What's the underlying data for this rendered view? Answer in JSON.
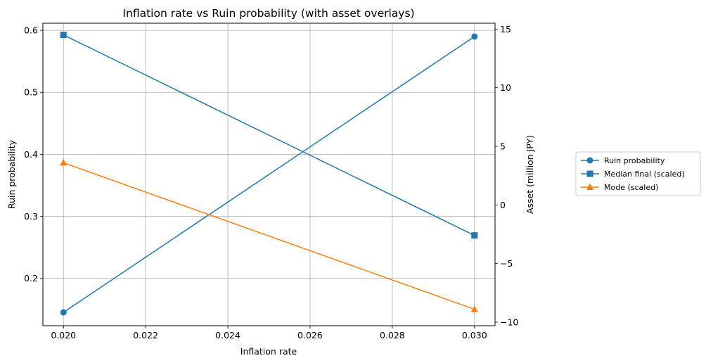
{
  "chart_data": {
    "type": "line",
    "title": "Inflation rate vs Ruin probability (with asset overlays)",
    "xlabel": "Inflation rate",
    "ylabel": "Ruin probability",
    "y2label": "Asset (million JPY)",
    "x": [
      0.02,
      0.03
    ],
    "xlim": [
      0.0195,
      0.0305
    ],
    "ylim": [
      0.1235,
      0.6115
    ],
    "y2lim": [
      -10.3,
      15.5
    ],
    "xticks": [
      "0.020",
      "0.022",
      "0.024",
      "0.026",
      "0.028",
      "0.030"
    ],
    "yticks": [
      "0.2",
      "0.3",
      "0.4",
      "0.5",
      "0.6"
    ],
    "y2ticks": [
      "−10",
      "−5",
      "0",
      "5",
      "10",
      "15"
    ],
    "grid": true,
    "legend_position": "right, outside plot",
    "series": [
      {
        "name": "Ruin probability",
        "axis": "left",
        "values": [
          0.145,
          0.59
        ],
        "color": "#1f77b4",
        "marker": "circle"
      },
      {
        "name": "Median final (scaled)",
        "axis": "right",
        "values": [
          14.5,
          -2.6
        ],
        "color": "#1f77b4",
        "marker": "square"
      },
      {
        "name": "Mode (scaled)",
        "axis": "right",
        "values": [
          3.6,
          -8.9
        ],
        "color": "#ff7f0e",
        "marker": "triangle"
      }
    ]
  }
}
